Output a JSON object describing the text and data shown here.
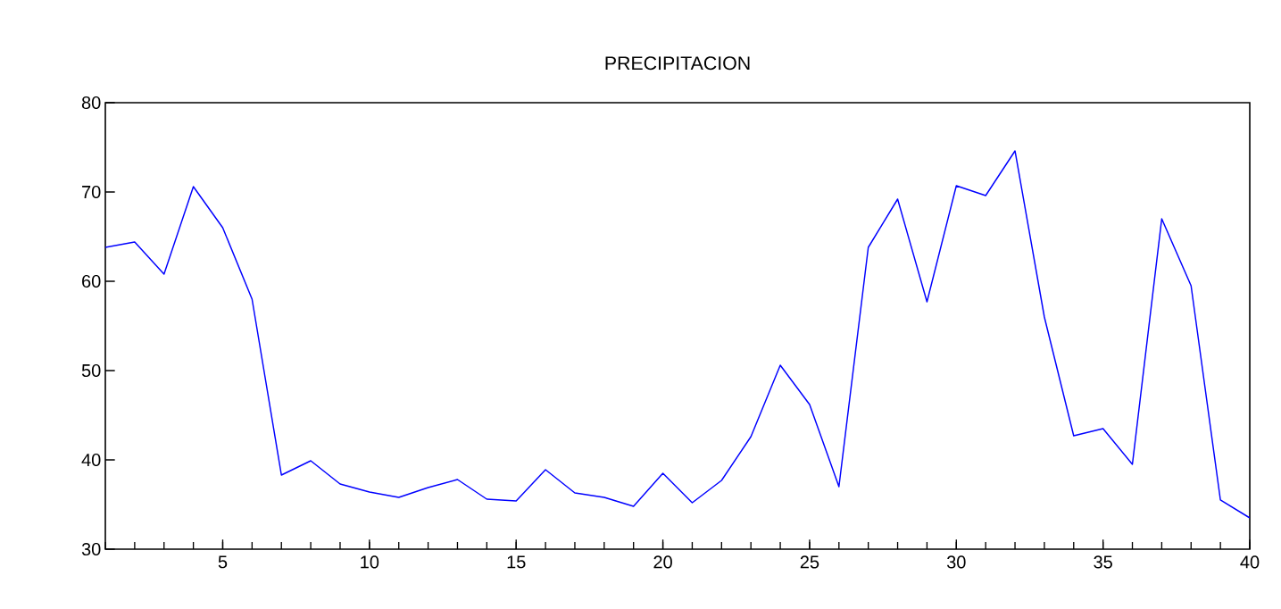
{
  "chart_data": {
    "type": "line",
    "title": "PRECIPITACION",
    "x": [
      1,
      2,
      3,
      4,
      5,
      6,
      7,
      8,
      9,
      10,
      11,
      12,
      13,
      14,
      15,
      16,
      17,
      18,
      19,
      20,
      21,
      22,
      23,
      24,
      25,
      26,
      27,
      28,
      29,
      30,
      31,
      32,
      33,
      34,
      35,
      36,
      37,
      38,
      39,
      40
    ],
    "values": [
      63.8,
      64.4,
      60.8,
      70.6,
      66.0,
      58.0,
      38.3,
      39.9,
      37.3,
      36.4,
      35.8,
      36.9,
      37.8,
      35.6,
      35.4,
      38.9,
      36.3,
      35.8,
      34.8,
      38.5,
      35.2,
      37.7,
      42.6,
      50.6,
      46.2,
      37.0,
      63.8,
      69.2,
      57.7,
      70.7,
      69.6,
      74.6,
      56.0,
      42.7,
      43.5,
      39.5,
      67.0,
      59.5,
      35.5,
      33.5
    ],
    "color": "#0000ff",
    "xlim": [
      1,
      40
    ],
    "xticks": [
      5,
      10,
      15,
      20,
      25,
      30,
      35,
      40
    ],
    "ylim": [
      30,
      80
    ],
    "yticks": [
      30,
      40,
      50,
      60,
      70,
      80
    ],
    "grid": false,
    "marker": "none",
    "line_style": "solid"
  }
}
